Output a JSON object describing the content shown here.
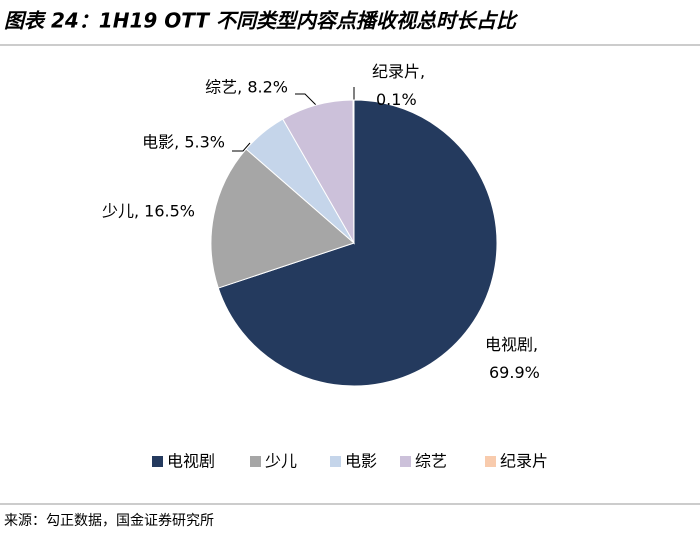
{
  "chart_data": {
    "type": "pie",
    "title": "图表 24：1H19 OTT 不同类型内容点播收视总时长占比",
    "categories": [
      "电视剧",
      "少儿",
      "电影",
      "综艺",
      "纪录片"
    ],
    "values": [
      69.9,
      16.5,
      5.3,
      8.2,
      0.1
    ],
    "value_labels": [
      "电视剧, 69.9%",
      "少儿, 16.5%",
      "电影, 5.3%",
      "综艺, 8.2%",
      "纪录片, 0.1%"
    ],
    "colors": [
      "#243a5e",
      "#a6a6a6",
      "#c5d5ea",
      "#ccc1da",
      "#f8cbad"
    ],
    "source": "来源：勾正数据，国金证券研究所"
  }
}
